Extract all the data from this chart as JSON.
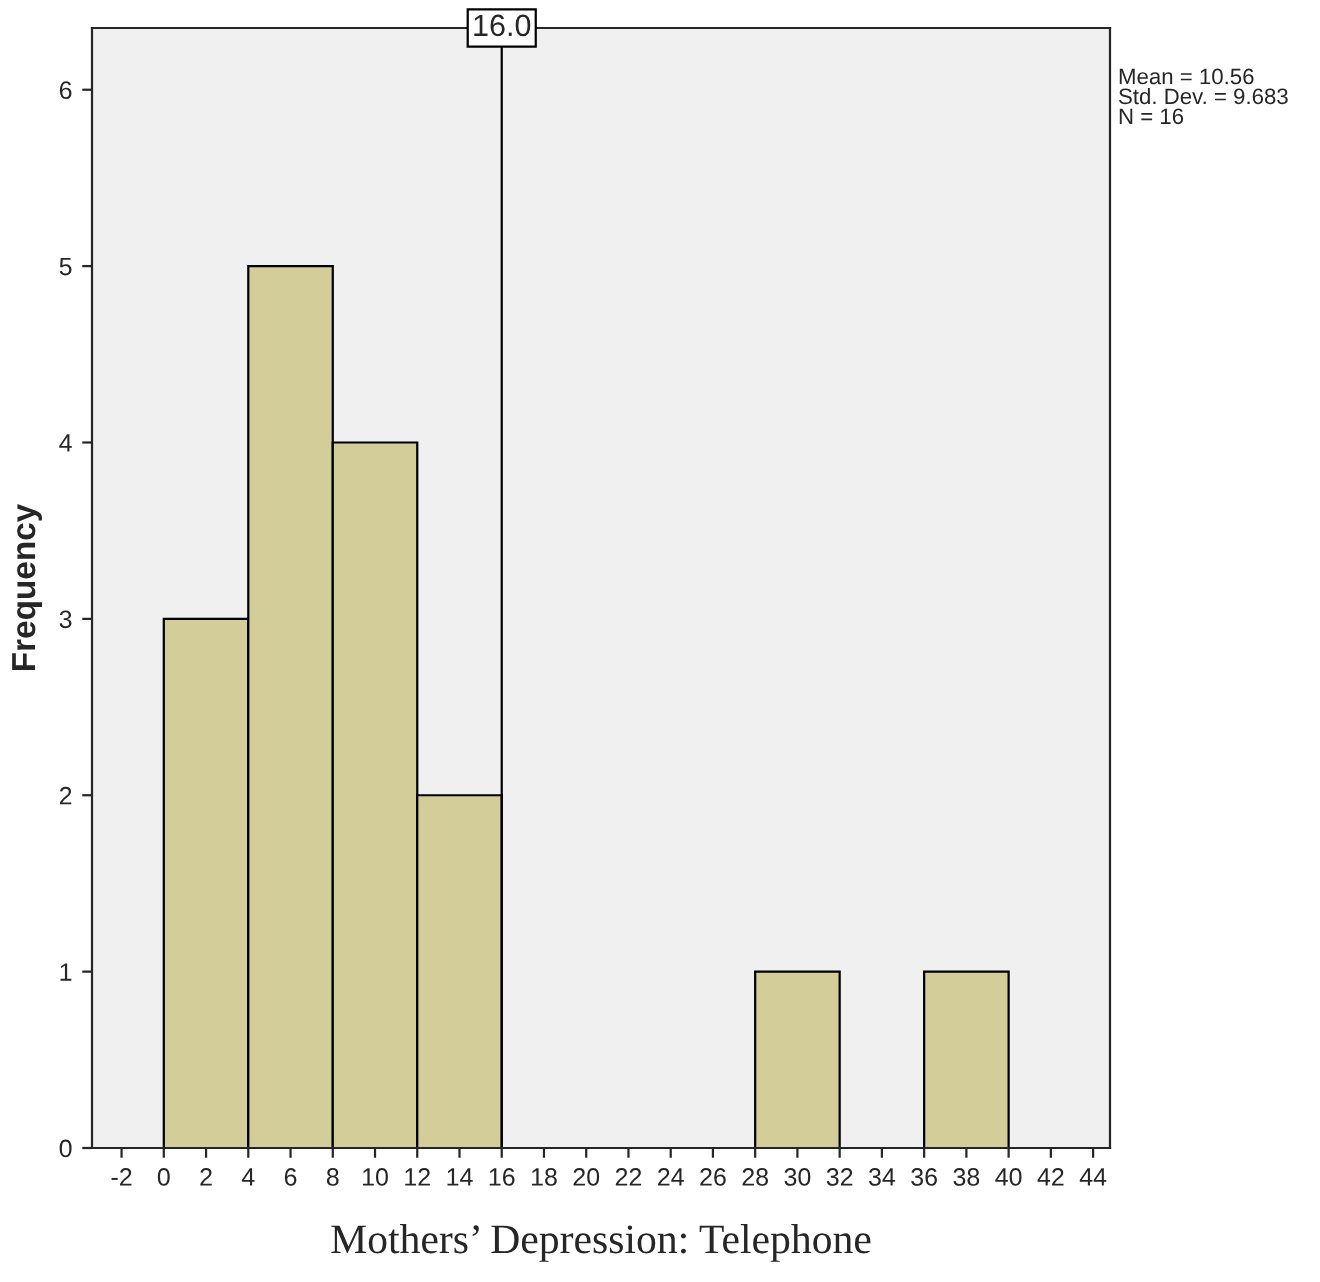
{
  "chart_data": {
    "type": "histogram",
    "bins": [
      0,
      4,
      8,
      12,
      16,
      20,
      24,
      28,
      32,
      36,
      40
    ],
    "values": [
      3,
      5,
      4,
      2,
      0,
      0,
      0,
      1,
      0,
      1
    ],
    "color": "#d3ce99",
    "xlabel": "Mothers’ Depression: Telephone",
    "ylabel": "Frequency",
    "xlim": [
      -3.4,
      44.8
    ],
    "xticks": [
      -2,
      0,
      2,
      4,
      6,
      8,
      10,
      12,
      14,
      16,
      18,
      20,
      22,
      24,
      26,
      28,
      30,
      32,
      34,
      36,
      38,
      40,
      42,
      44
    ],
    "ylim": [
      0,
      6.35
    ],
    "yticks": [
      0,
      1,
      2,
      3,
      4,
      5,
      6
    ],
    "ref_lines": [
      {
        "axis": "x",
        "value": 16,
        "label": "16.0",
        "color": "#000000"
      }
    ],
    "annotations": [
      "Mean = 10.56\nStd. Dev. = 9.683\nN = 16"
    ],
    "grid": false,
    "legend": false
  }
}
